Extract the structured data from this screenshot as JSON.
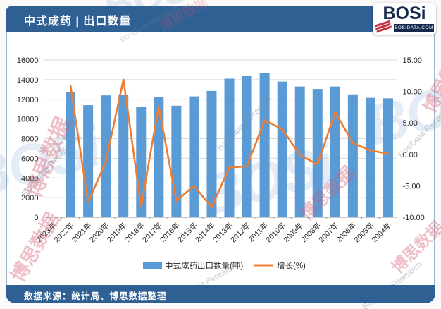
{
  "header": {
    "title": "中式成药 | 出口数量"
  },
  "logo": {
    "name": "BOSi",
    "domain": "BOSIDATA.COM"
  },
  "footer": {
    "source": "数据来源：统计局、博思数据整理"
  },
  "watermarks": {
    "cn": "博思数据",
    "en": "BosiData Research",
    "logo": "BOSi"
  },
  "colors": {
    "header_bar": "#2f6094",
    "bar": "#5b9bd5",
    "line": "#ed7d31",
    "grid": "#d9d9d9",
    "axis_text": "#262626"
  },
  "chart_data": {
    "type": "combo-bar-line",
    "title": "中式成药 | 出口数量",
    "categories": [
      "2023年",
      "2022年",
      "2021年",
      "2020年",
      "2019年",
      "2018年",
      "2017年",
      "2016年",
      "2015年",
      "2014年",
      "2013年",
      "2012年",
      "2011年",
      "2010年",
      "2009年",
      "2008年",
      "2007年",
      "2006年",
      "2005年",
      "2004年"
    ],
    "series": [
      {
        "name": "中式成药出口数量(吨)",
        "type": "bar",
        "axis": "left",
        "color": "#5b9bd5",
        "values": [
          null,
          12700,
          11400,
          12400,
          12450,
          11200,
          12200,
          11350,
          12300,
          12850,
          14100,
          14350,
          14650,
          13800,
          13300,
          13050,
          13300,
          12500,
          12150,
          12100
        ]
      },
      {
        "name": "增长(%)",
        "type": "line",
        "axis": "right",
        "color": "#ed7d31",
        "values": [
          null,
          10.9,
          -7.6,
          -1.2,
          11.9,
          -8.3,
          7.6,
          -7.4,
          -5.0,
          -8.4,
          -2.1,
          -1.9,
          5.4,
          4.0,
          -0.1,
          -1.6,
          6.7,
          1.8,
          0.6,
          0.1
        ]
      }
    ],
    "left_axis": {
      "min": 0,
      "max": 16000,
      "step": 2000,
      "ticks": [
        0,
        2000,
        4000,
        6000,
        8000,
        10000,
        12000,
        14000,
        16000
      ]
    },
    "right_axis": {
      "min": -10,
      "max": 15,
      "step": 5,
      "decimals": 2,
      "ticks": [
        "-10.00",
        "-5.00",
        "0.00",
        "5.00",
        "10.00",
        "15.00"
      ]
    },
    "grid": "horizontal",
    "legend_position": "bottom"
  }
}
